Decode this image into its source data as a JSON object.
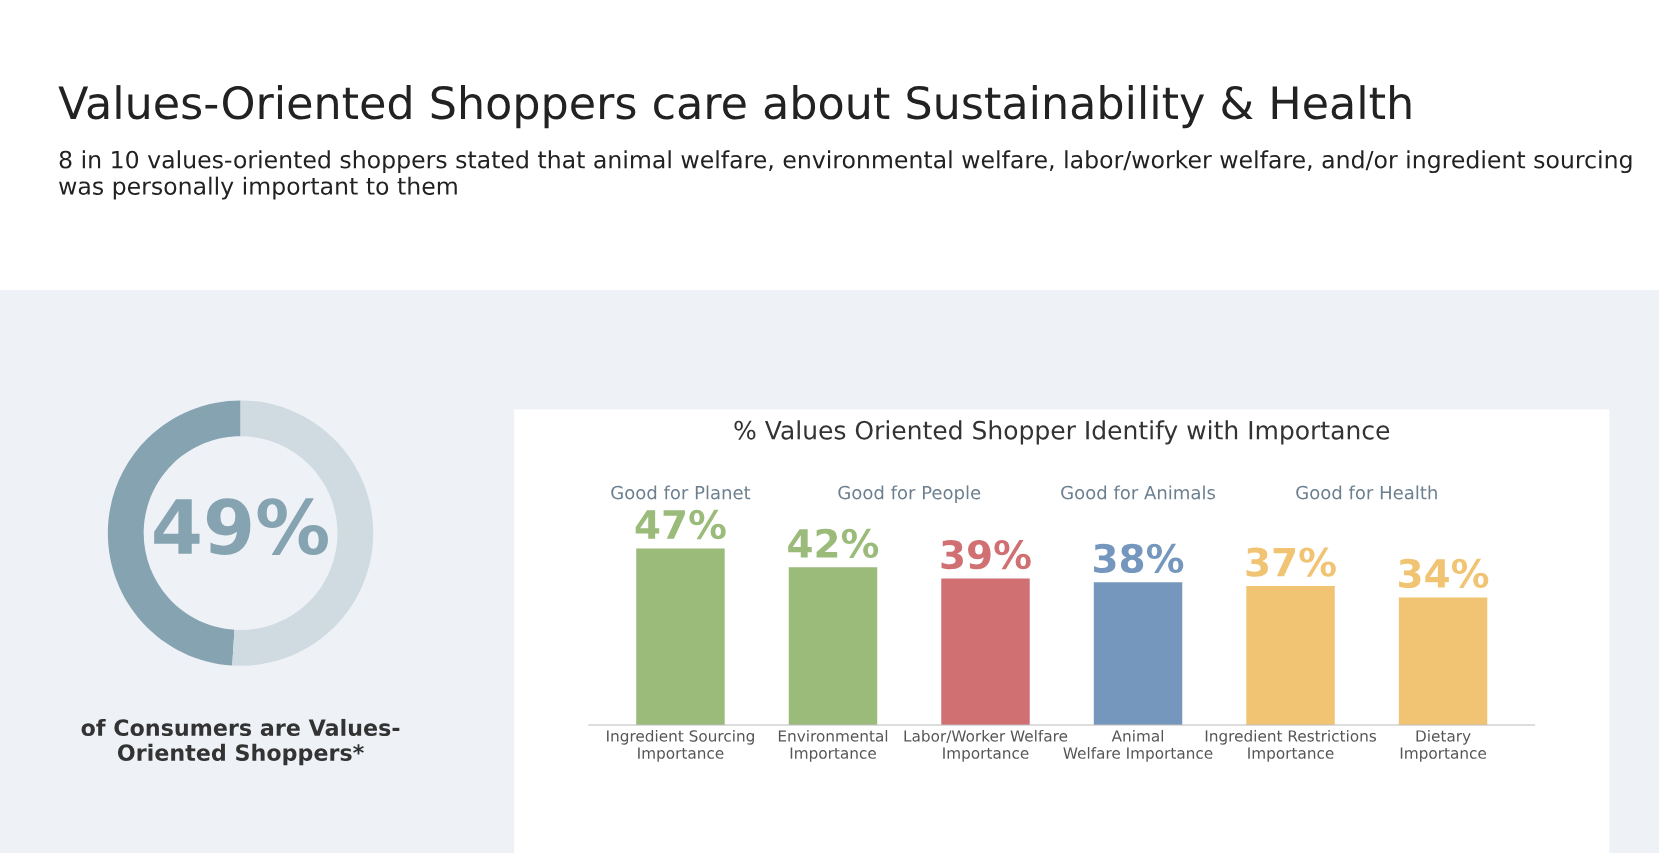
{
  "chart_data": [
    {
      "type": "donut",
      "title": "Values-Oriented Shoppers care about Sustainability & Health",
      "subtitle": "8 in 10 values-oriented shoppers stated that animal welfare, environmental welfare, labor/worker welfare, and/or ingredient sourcing was personally important to them",
      "categories": [
        null,
        null
      ],
      "values": [
        49,
        51
      ],
      "colors": [
        "#86a3b1",
        "#d0dbe1"
      ],
      "value_labels": [
        "49%",
        null
      ],
      "annotations": [
        "of Consumers are Values-\nOriented Shoppers*"
      ]
    },
    {
      "type": "bar",
      "title": "% Values Oriented Shopper Identify with Importance",
      "categories": [
        "Ingredient Sourcing\nImportance",
        "Environmental\nImportance",
        "Labor/Worker Welfare\nImportance",
        "Animal\nWelfare Importance",
        "Ingredient Restrictions\nImportance",
        "Dietary\nImportance"
      ],
      "values": [
        47,
        42,
        39,
        38,
        37,
        34
      ],
      "colors": [
        "#9bbb7a",
        "#9bbb7a",
        "#d07072",
        "#7597bd",
        "#f0c473",
        "#f0c473"
      ],
      "value_labels": [
        "47%",
        "42%",
        "39%",
        "38%",
        "37%",
        "34%"
      ],
      "annotations": [
        "Good for Planet",
        "Good for People",
        "Good for Animals",
        "Good for Health"
      ]
    }
  ]
}
